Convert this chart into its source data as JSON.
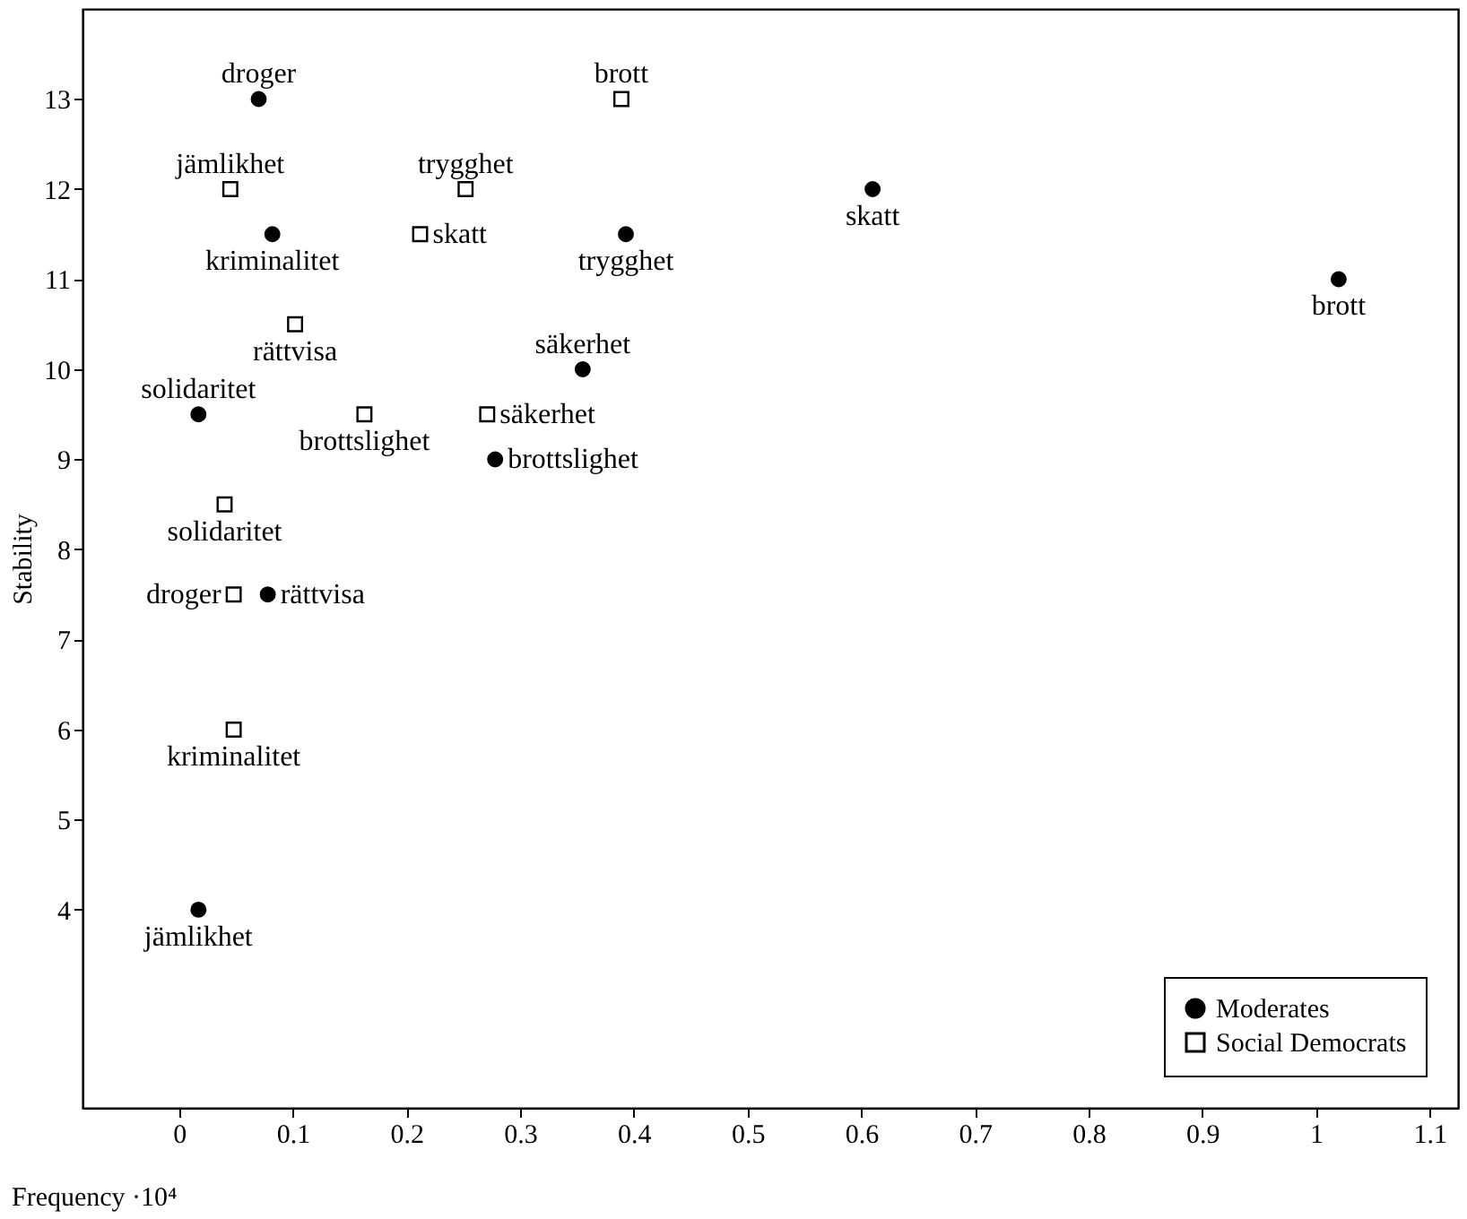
{
  "chart_data": {
    "type": "scatter",
    "xlabel": "Frequency  ·10⁴",
    "ylabel": "Stability",
    "xlim": [
      -0.085,
      1.125
    ],
    "ylim": [
      1.8,
      14.0
    ],
    "xticks": [
      0,
      0.1,
      0.2,
      0.3,
      0.4,
      0.5,
      0.6,
      0.7,
      0.8,
      0.9,
      1,
      1.1
    ],
    "yticks": [
      4,
      5,
      6,
      7,
      8,
      9,
      10,
      11,
      12,
      13
    ],
    "grid": false,
    "legend": "bottom right",
    "series": [
      {
        "name": "Moderates",
        "color": "#000000",
        "marker": "circle",
        "x": [
          0.07,
          1.02,
          0.61,
          0.393,
          0.082,
          0.355,
          0.017,
          0.278,
          0.078,
          0.017
        ],
        "values": [
          13,
          11,
          12,
          11.5,
          11.5,
          10,
          9.5,
          9,
          7.5,
          4
        ]
      },
      {
        "name": "Social Democrats",
        "color": "#000000",
        "marker": "square",
        "x": [
          0.389,
          0.045,
          0.252,
          0.212,
          0.102,
          0.163,
          0.271,
          0.04,
          0.048,
          0.048
        ],
        "values": [
          13,
          12,
          12,
          11.5,
          10.5,
          9.5,
          9.5,
          8.5,
          7.5,
          6
        ]
      }
    ],
    "annotations": [
      {
        "text": "droger",
        "x": 0.07,
        "y": 13
      },
      {
        "text": "brott",
        "x": 1.02,
        "y": 11
      },
      {
        "text": "skatt",
        "x": 0.61,
        "y": 12
      },
      {
        "text": "trygghet",
        "x": 0.393,
        "y": 11.5
      },
      {
        "text": "kriminalitet",
        "x": 0.082,
        "y": 11.5
      },
      {
        "text": "säkerhet",
        "x": 0.355,
        "y": 10
      },
      {
        "text": "solidaritet",
        "x": 0.017,
        "y": 9.5
      },
      {
        "text": "brottslighet",
        "x": 0.278,
        "y": 9
      },
      {
        "text": "rättvisa",
        "x": 0.078,
        "y": 7.5
      },
      {
        "text": "jämlikhet",
        "x": 0.017,
        "y": 4
      },
      {
        "text": "brott",
        "x": 0.389,
        "y": 13
      },
      {
        "text": "jämlikhet",
        "x": 0.045,
        "y": 12
      },
      {
        "text": "trygghet",
        "x": 0.252,
        "y": 12
      },
      {
        "text": "skatt",
        "x": 0.212,
        "y": 11.5
      },
      {
        "text": "rättvisa",
        "x": 0.102,
        "y": 10.5
      },
      {
        "text": "brottslighet",
        "x": 0.163,
        "y": 9.5
      },
      {
        "text": "säkerhet",
        "x": 0.271,
        "y": 9.5
      },
      {
        "text": "solidaritet",
        "x": 0.04,
        "y": 8.5
      },
      {
        "text": "droger",
        "x": 0.048,
        "y": 7.5
      },
      {
        "text": "kriminalitet",
        "x": 0.048,
        "y": 6
      }
    ]
  }
}
